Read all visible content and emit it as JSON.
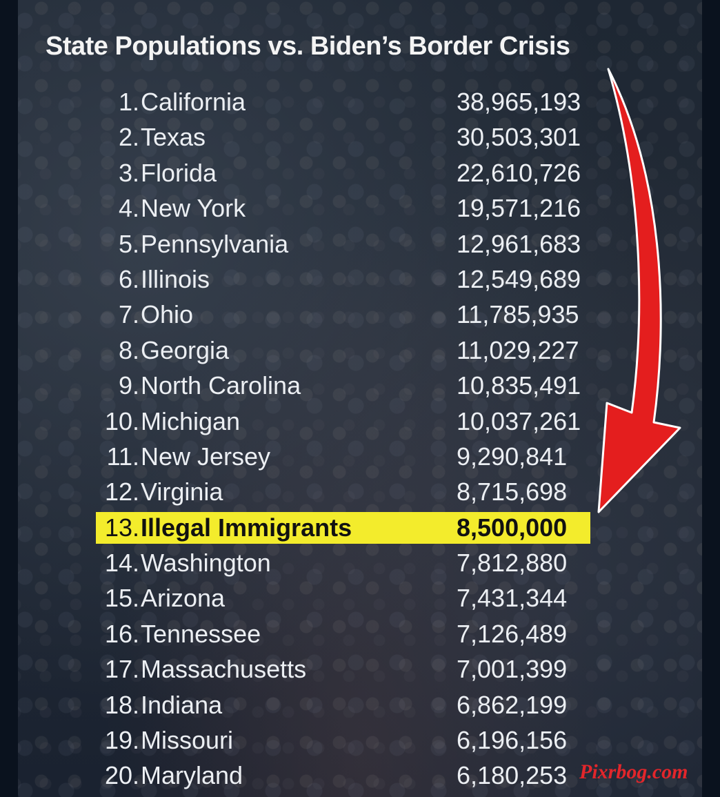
{
  "title": "State Populations vs. Biden’s Border Crisis",
  "rows": [
    {
      "rank": "1.",
      "name": "California",
      "value": "38,965,193"
    },
    {
      "rank": "2.",
      "name": "Texas",
      "value": "30,503,301"
    },
    {
      "rank": "3.",
      "name": "Florida",
      "value": "22,610,726"
    },
    {
      "rank": "4.",
      "name": "New York",
      "value": "19,571,216"
    },
    {
      "rank": "5.",
      "name": "Pennsylvania",
      "value": "12,961,683"
    },
    {
      "rank": "6.",
      "name": "Illinois",
      "value": "12,549,689"
    },
    {
      "rank": "7.",
      "name": "Ohio",
      "value": "11,785,935"
    },
    {
      "rank": "8.",
      "name": "Georgia",
      "value": "11,029,227"
    },
    {
      "rank": "9.",
      "name": "North Carolina",
      "value": "10,835,491"
    },
    {
      "rank": "10.",
      "name": "Michigan",
      "value": "10,037,261"
    },
    {
      "rank": "11.",
      "name": "New Jersey",
      "value": "9,290,841"
    },
    {
      "rank": "12.",
      "name": "Virginia",
      "value": "8,715,698"
    },
    {
      "rank": "13.",
      "name": "Illegal Immigrants",
      "value": "8,500,000"
    },
    {
      "rank": "14.",
      "name": "Washington",
      "value": "7,812,880"
    },
    {
      "rank": "15.",
      "name": "Arizona",
      "value": "7,431,344"
    },
    {
      "rank": "16.",
      "name": "Tennessee",
      "value": "7,126,489"
    },
    {
      "rank": "17.",
      "name": "Massachusetts",
      "value": "7,001,399"
    },
    {
      "rank": "18.",
      "name": "Indiana",
      "value": "6,862,199"
    },
    {
      "rank": "19.",
      "name": "Missouri",
      "value": "6,196,156"
    },
    {
      "rank": "20.",
      "name": "Maryland",
      "value": "6,180,253"
    }
  ],
  "highlight_rank": "13.",
  "watermark": "Pixrbog.com",
  "colors": {
    "highlight": "#f3ec2c",
    "arrow": "#e41e1e",
    "text": "#eceff3",
    "watermark": "#e2262b"
  }
}
